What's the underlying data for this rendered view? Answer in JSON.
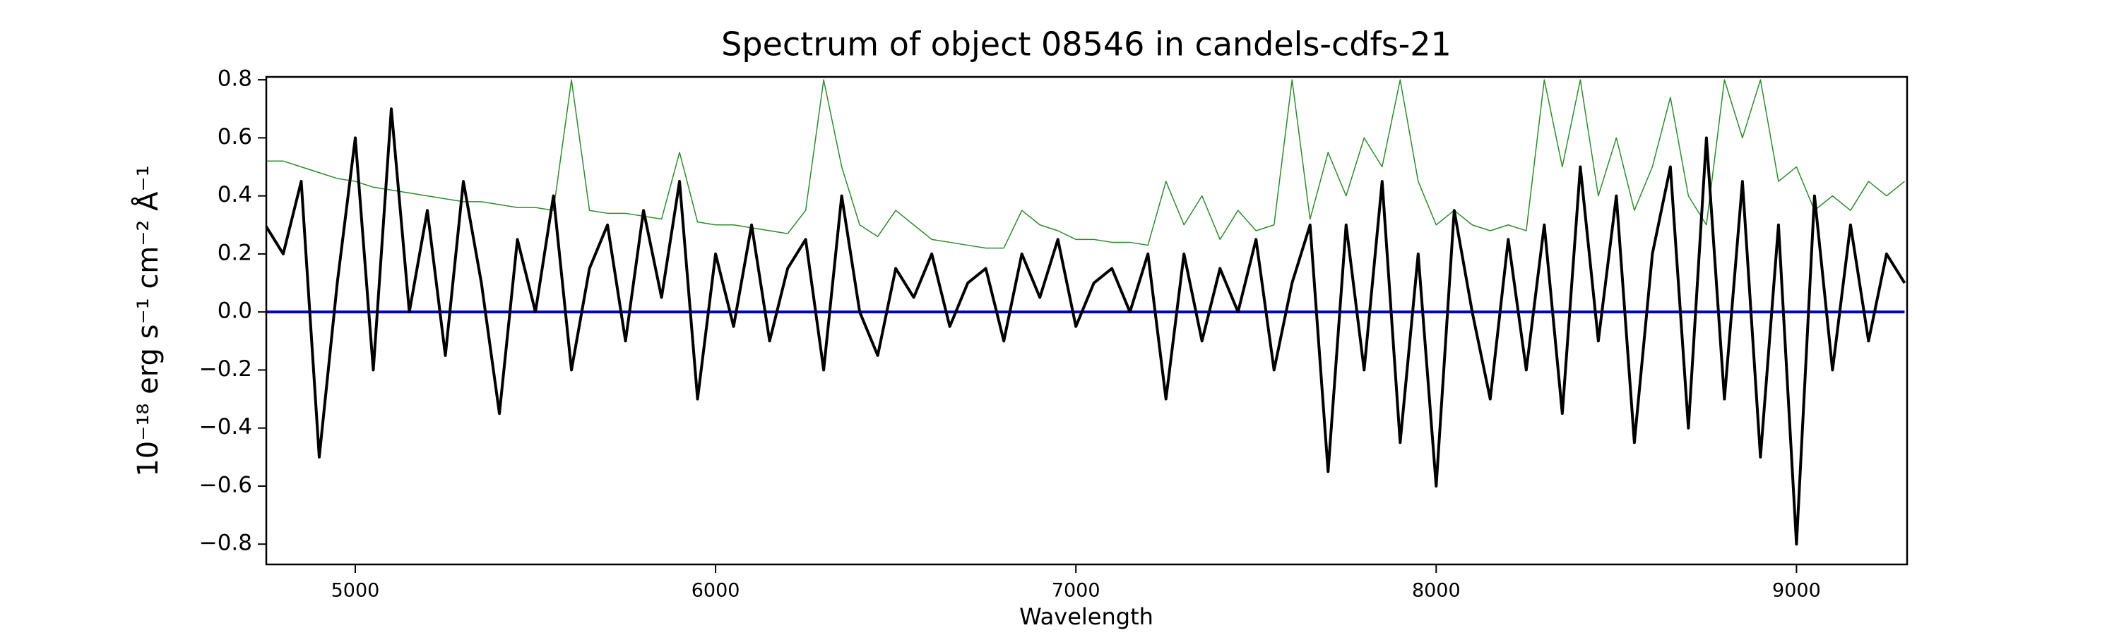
{
  "chart_data": {
    "type": "line",
    "title": "Spectrum of object 08546 in candels-cdfs-21",
    "xlabel": "Wavelength",
    "ylabel": "10⁻¹⁸ erg s⁻¹ cm⁻² Å⁻¹",
    "x": [
      4750,
      4800,
      4850,
      4900,
      4950,
      5000,
      5050,
      5100,
      5150,
      5200,
      5250,
      5300,
      5350,
      5400,
      5450,
      5500,
      5550,
      5600,
      5650,
      5700,
      5750,
      5800,
      5850,
      5900,
      5950,
      6000,
      6050,
      6100,
      6150,
      6200,
      6250,
      6300,
      6350,
      6400,
      6450,
      6500,
      6550,
      6600,
      6650,
      6700,
      6750,
      6800,
      6850,
      6900,
      6950,
      7000,
      7050,
      7100,
      7150,
      7200,
      7250,
      7300,
      7350,
      7400,
      7450,
      7500,
      7550,
      7600,
      7650,
      7700,
      7750,
      7800,
      7850,
      7900,
      7950,
      8000,
      8050,
      8100,
      8150,
      8200,
      8250,
      8300,
      8350,
      8400,
      8450,
      8500,
      8550,
      8600,
      8650,
      8700,
      8750,
      8800,
      8850,
      8900,
      8950,
      9000,
      9050,
      9100,
      9150,
      9200,
      9250,
      9300
    ],
    "series": [
      {
        "color": "#2e8b2e",
        "values": [
          0.52,
          0.52,
          0.5,
          0.48,
          0.46,
          0.45,
          0.43,
          0.42,
          0.41,
          0.4,
          0.39,
          0.38,
          0.38,
          0.37,
          0.36,
          0.36,
          0.35,
          0.8,
          0.35,
          0.34,
          0.34,
          0.33,
          0.32,
          0.55,
          0.31,
          0.3,
          0.3,
          0.29,
          0.28,
          0.27,
          0.35,
          0.8,
          0.5,
          0.3,
          0.26,
          0.35,
          0.3,
          0.25,
          0.24,
          0.23,
          0.22,
          0.22,
          0.35,
          0.3,
          0.28,
          0.25,
          0.25,
          0.24,
          0.24,
          0.23,
          0.45,
          0.3,
          0.4,
          0.25,
          0.35,
          0.28,
          0.3,
          0.8,
          0.32,
          0.55,
          0.4,
          0.6,
          0.5,
          0.8,
          0.45,
          0.3,
          0.35,
          0.3,
          0.28,
          0.3,
          0.28,
          0.8,
          0.5,
          0.8,
          0.4,
          0.6,
          0.35,
          0.5,
          0.74,
          0.4,
          0.3,
          0.8,
          0.6,
          0.8,
          0.45,
          0.5,
          0.35,
          0.4,
          0.35,
          0.45,
          0.4,
          0.45
        ],
        "width": 1.5
      },
      {
        "color": "#0000cc",
        "x": [
          4750,
          9300
        ],
        "values": [
          0,
          0
        ],
        "width": 4
      },
      {
        "color": "#000000",
        "values": [
          0.3,
          0.2,
          0.45,
          -0.5,
          0.1,
          0.6,
          -0.2,
          0.7,
          0.0,
          0.35,
          -0.15,
          0.45,
          0.1,
          -0.35,
          0.25,
          0.0,
          0.4,
          -0.2,
          0.15,
          0.3,
          -0.1,
          0.35,
          0.05,
          0.45,
          -0.3,
          0.2,
          -0.05,
          0.3,
          -0.1,
          0.15,
          0.25,
          -0.2,
          0.4,
          0.0,
          -0.15,
          0.15,
          0.05,
          0.2,
          -0.05,
          0.1,
          0.15,
          -0.1,
          0.2,
          0.05,
          0.25,
          -0.05,
          0.1,
          0.15,
          0.0,
          0.2,
          -0.3,
          0.2,
          -0.1,
          0.15,
          0.0,
          0.25,
          -0.2,
          0.1,
          0.3,
          -0.55,
          0.3,
          -0.2,
          0.45,
          -0.45,
          0.2,
          -0.6,
          0.35,
          0.0,
          -0.3,
          0.25,
          -0.2,
          0.3,
          -0.35,
          0.5,
          -0.1,
          0.4,
          -0.45,
          0.2,
          0.5,
          -0.4,
          0.6,
          -0.3,
          0.45,
          -0.5,
          0.3,
          -0.8,
          0.4,
          -0.2,
          0.3,
          -0.1,
          0.2,
          0.1
        ],
        "width": 4
      }
    ],
    "xlim": [
      4753,
      9307
    ],
    "ylim": [
      -0.87,
      0.81
    ],
    "xticks": [
      5000,
      6000,
      7000,
      8000,
      9000
    ],
    "yticks": [
      {
        "value": -0.8,
        "label": "−0.8"
      },
      {
        "value": -0.6,
        "label": "−0.6"
      },
      {
        "value": -0.4,
        "label": "−0.4"
      },
      {
        "value": -0.2,
        "label": "−0.2"
      },
      {
        "value": 0,
        "label": "0.0"
      },
      0.2,
      0.4,
      0.6,
      0.8
    ]
  }
}
